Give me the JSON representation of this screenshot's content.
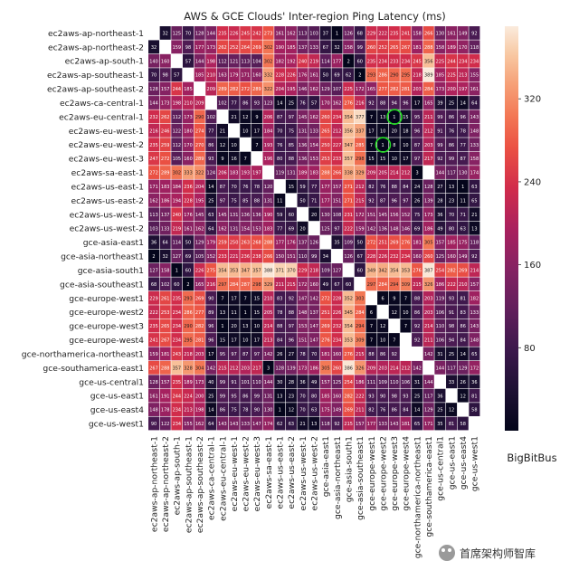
{
  "chart_data": {
    "type": "heatmap",
    "title": "AWS & GCE Clouds' Inter-region Ping Latency (ms)",
    "labels": [
      "ec2aws-ap-northeast-1",
      "ec2aws-ap-northeast-2",
      "ec2aws-ap-south-1",
      "ec2aws-ap-southeast-1",
      "ec2aws-ap-southeast-2",
      "ec2aws-ca-central-1",
      "ec2aws-eu-central-1",
      "ec2aws-eu-west-1",
      "ec2aws-eu-west-2",
      "ec2aws-eu-west-3",
      "ec2aws-sa-east-1",
      "ec2aws-us-east-1",
      "ec2aws-us-east-2",
      "ec2aws-us-west-1",
      "ec2aws-us-west-2",
      "gce-asia-east1",
      "gce-asia-northeast1",
      "gce-asia-south1",
      "gce-asia-southeast1",
      "gce-europe-west1",
      "gce-europe-west2",
      "gce-europe-west3",
      "gce-europe-west4",
      "gce-northamerica-northeast1",
      "gce-southamerica-east1",
      "gce-us-central1",
      "gce-us-east1",
      "gce-us-east4",
      "gce-us-west1"
    ],
    "values": [
      [
        null,
        32,
        125,
        70,
        128,
        144,
        235,
        226,
        245,
        242,
        273,
        161,
        162,
        113,
        103,
        37,
        1,
        126,
        68,
        229,
        222,
        235,
        241,
        158,
        266,
        130,
        161,
        149,
        92
      ],
      [
        32,
        null,
        159,
        98,
        177,
        173,
        262,
        252,
        264,
        269,
        302,
        190,
        185,
        137,
        133,
        67,
        32,
        158,
        99,
        260,
        252,
        265,
        267,
        181,
        288,
        158,
        189,
        170,
        118
      ],
      [
        140,
        160,
        null,
        57,
        144,
        198,
        112,
        121,
        113,
        104,
        302,
        182,
        192,
        240,
        219,
        114,
        177,
        2,
        60,
        235,
        234,
        233,
        234,
        245,
        356,
        225,
        244,
        234,
        234
      ],
      [
        70,
        98,
        57,
        null,
        185,
        210,
        163,
        179,
        171,
        160,
        332,
        228,
        226,
        176,
        161,
        50,
        69,
        62,
        2,
        293,
        286,
        290,
        295,
        218,
        389,
        185,
        225,
        213,
        155
      ],
      [
        128,
        157,
        244,
        185,
        null,
        209,
        289,
        282,
        272,
        289,
        322,
        204,
        195,
        146,
        162,
        129,
        107,
        225,
        172,
        165,
        277,
        282,
        281,
        203,
        284,
        173,
        200,
        197,
        161
      ],
      [
        144,
        173,
        198,
        210,
        209,
        null,
        102,
        77,
        86,
        93,
        123,
        14,
        25,
        76,
        57,
        170,
        162,
        276,
        216,
        92,
        88,
        94,
        96,
        17,
        165,
        39,
        25,
        14,
        64
      ],
      [
        232,
        262,
        112,
        173,
        290,
        102,
        null,
        21,
        12,
        9,
        206,
        87,
        97,
        145,
        162,
        260,
        234,
        354,
        377,
        7,
        13,
        1,
        15,
        95,
        211,
        99,
        86,
        96,
        143
      ],
      [
        216,
        246,
        122,
        180,
        274,
        77,
        21,
        null,
        10,
        17,
        184,
        70,
        75,
        131,
        133,
        265,
        212,
        356,
        337,
        17,
        10,
        20,
        18,
        96,
        212,
        91,
        76,
        78,
        148
      ],
      [
        235,
        259,
        112,
        170,
        270,
        86,
        12,
        10,
        null,
        7,
        193,
        76,
        85,
        136,
        154,
        250,
        227,
        347,
        285,
        7,
        1,
        8,
        10,
        87,
        203,
        99,
        86,
        77,
        133
      ],
      [
        247,
        272,
        105,
        160,
        289,
        93,
        9,
        16,
        7,
        null,
        196,
        80,
        88,
        136,
        153,
        253,
        233,
        357,
        298,
        15,
        15,
        10,
        17,
        97,
        217,
        92,
        99,
        87,
        158
      ],
      [
        272,
        289,
        302,
        333,
        322,
        124,
        206,
        183,
        193,
        197,
        null,
        119,
        131,
        189,
        183,
        288,
        266,
        338,
        329,
        209,
        205,
        214,
        212,
        3,
        null,
        144,
        117,
        130,
        174
      ],
      [
        171,
        183,
        184,
        236,
        204,
        14,
        87,
        70,
        76,
        78,
        120,
        null,
        15,
        59,
        77,
        177,
        157,
        271,
        212,
        82,
        76,
        88,
        84,
        24,
        128,
        27,
        13,
        1,
        63
      ],
      [
        162,
        186,
        194,
        228,
        195,
        25,
        97,
        75,
        85,
        88,
        131,
        11,
        null,
        50,
        71,
        177,
        151,
        271,
        215,
        92,
        87,
        96,
        97,
        26,
        139,
        28,
        23,
        11,
        65
      ],
      [
        113,
        137,
        240,
        176,
        145,
        63,
        145,
        131,
        136,
        136,
        190,
        59,
        60,
        null,
        20,
        130,
        108,
        231,
        172,
        151,
        145,
        156,
        152,
        75,
        173,
        36,
        70,
        71,
        21
      ],
      [
        103,
        133,
        219,
        161,
        162,
        64,
        162,
        131,
        154,
        153,
        183,
        77,
        69,
        20,
        null,
        125,
        97,
        222,
        159,
        142,
        136,
        148,
        146,
        69,
        186,
        49,
        80,
        63,
        13
      ],
      [
        36,
        64,
        114,
        50,
        129,
        179,
        259,
        250,
        263,
        268,
        288,
        177,
        176,
        137,
        126,
        null,
        35,
        109,
        50,
        272,
        251,
        269,
        276,
        181,
        305,
        157,
        185,
        175,
        118
      ],
      [
        2,
        32,
        127,
        69,
        105,
        152,
        233,
        221,
        236,
        238,
        266,
        150,
        151,
        110,
        99,
        34,
        null,
        126,
        67,
        228,
        226,
        232,
        234,
        160,
        260,
        125,
        160,
        149,
        92
      ],
      [
        127,
        158,
        1,
        60,
        226,
        275,
        354,
        353,
        347,
        357,
        388,
        371,
        370,
        229,
        218,
        109,
        127,
        null,
        60,
        349,
        342,
        354,
        353,
        276,
        387,
        254,
        282,
        269,
        214
      ],
      [
        68,
        102,
        60,
        2,
        165,
        216,
        297,
        284,
        287,
        298,
        329,
        211,
        215,
        172,
        160,
        49,
        67,
        60,
        null,
        297,
        284,
        294,
        309,
        215,
        326,
        186,
        222,
        210,
        157
      ],
      [
        229,
        261,
        235,
        293,
        269,
        90,
        7,
        17,
        7,
        15,
        210,
        83,
        92,
        147,
        142,
        272,
        228,
        352,
        303,
        null,
        6,
        9,
        7,
        88,
        203,
        119,
        93,
        81,
        182
      ],
      [
        222,
        253,
        234,
        286,
        277,
        89,
        13,
        11,
        1,
        15,
        205,
        78,
        88,
        148,
        137,
        251,
        226,
        345,
        284,
        6,
        null,
        12,
        10,
        86,
        203,
        106,
        91,
        83,
        133
      ],
      [
        235,
        265,
        234,
        290,
        282,
        96,
        1,
        20,
        13,
        10,
        214,
        88,
        97,
        153,
        147,
        269,
        232,
        354,
        294,
        7,
        12,
        null,
        7,
        92,
        214,
        110,
        98,
        86,
        143
      ],
      [
        241,
        267,
        234,
        295,
        281,
        96,
        15,
        17,
        10,
        17,
        213,
        84,
        96,
        151,
        147,
        276,
        234,
        353,
        309,
        7,
        10,
        7,
        null,
        92,
        211,
        106,
        94,
        84,
        148
      ],
      [
        159,
        181,
        243,
        218,
        203,
        17,
        95,
        97,
        87,
        97,
        142,
        26,
        27,
        78,
        70,
        181,
        160,
        276,
        215,
        88,
        86,
        92,
        null,
        null,
        142,
        31,
        25,
        14,
        65
      ],
      [
        267,
        288,
        357,
        328,
        304,
        142,
        215,
        212,
        203,
        217,
        3,
        128,
        139,
        173,
        186,
        305,
        260,
        386,
        326,
        209,
        203,
        214,
        212,
        142,
        null,
        144,
        117,
        129,
        172
      ],
      [
        128,
        157,
        235,
        189,
        173,
        40,
        99,
        91,
        101,
        110,
        144,
        30,
        28,
        36,
        49,
        157,
        125,
        254,
        186,
        111,
        109,
        110,
        106,
        31,
        144,
        null,
        33,
        26,
        36
      ],
      [
        161,
        191,
        244,
        224,
        200,
        25,
        99,
        95,
        86,
        99,
        131,
        13,
        23,
        70,
        80,
        185,
        160,
        282,
        222,
        93,
        90,
        98,
        93,
        25,
        117,
        36,
        null,
        12,
        81
      ],
      [
        148,
        178,
        234,
        213,
        198,
        14,
        86,
        75,
        78,
        90,
        130,
        1,
        12,
        70,
        63,
        175,
        149,
        269,
        211,
        82,
        76,
        86,
        84,
        14,
        129,
        25,
        12,
        null,
        58
      ],
      [
        90,
        122,
        234,
        155,
        162,
        64,
        143,
        143,
        133,
        147,
        174,
        62,
        63,
        21,
        13,
        118,
        92,
        215,
        157,
        177,
        133,
        143,
        181,
        65,
        171,
        35,
        81,
        58,
        null
      ]
    ],
    "vmin": 0,
    "vmax": 390,
    "colorbar_ticks": [
      80,
      160,
      240,
      320
    ],
    "colormap": "rocket",
    "highlight_circles": [
      {
        "row": 6,
        "col": 21,
        "color": "#22dd22"
      },
      {
        "row": 8,
        "col": 20,
        "color": "#22dd22"
      }
    ]
  },
  "footer": {
    "caption": "BigBitBus",
    "watermark": "首席架构师智库"
  }
}
